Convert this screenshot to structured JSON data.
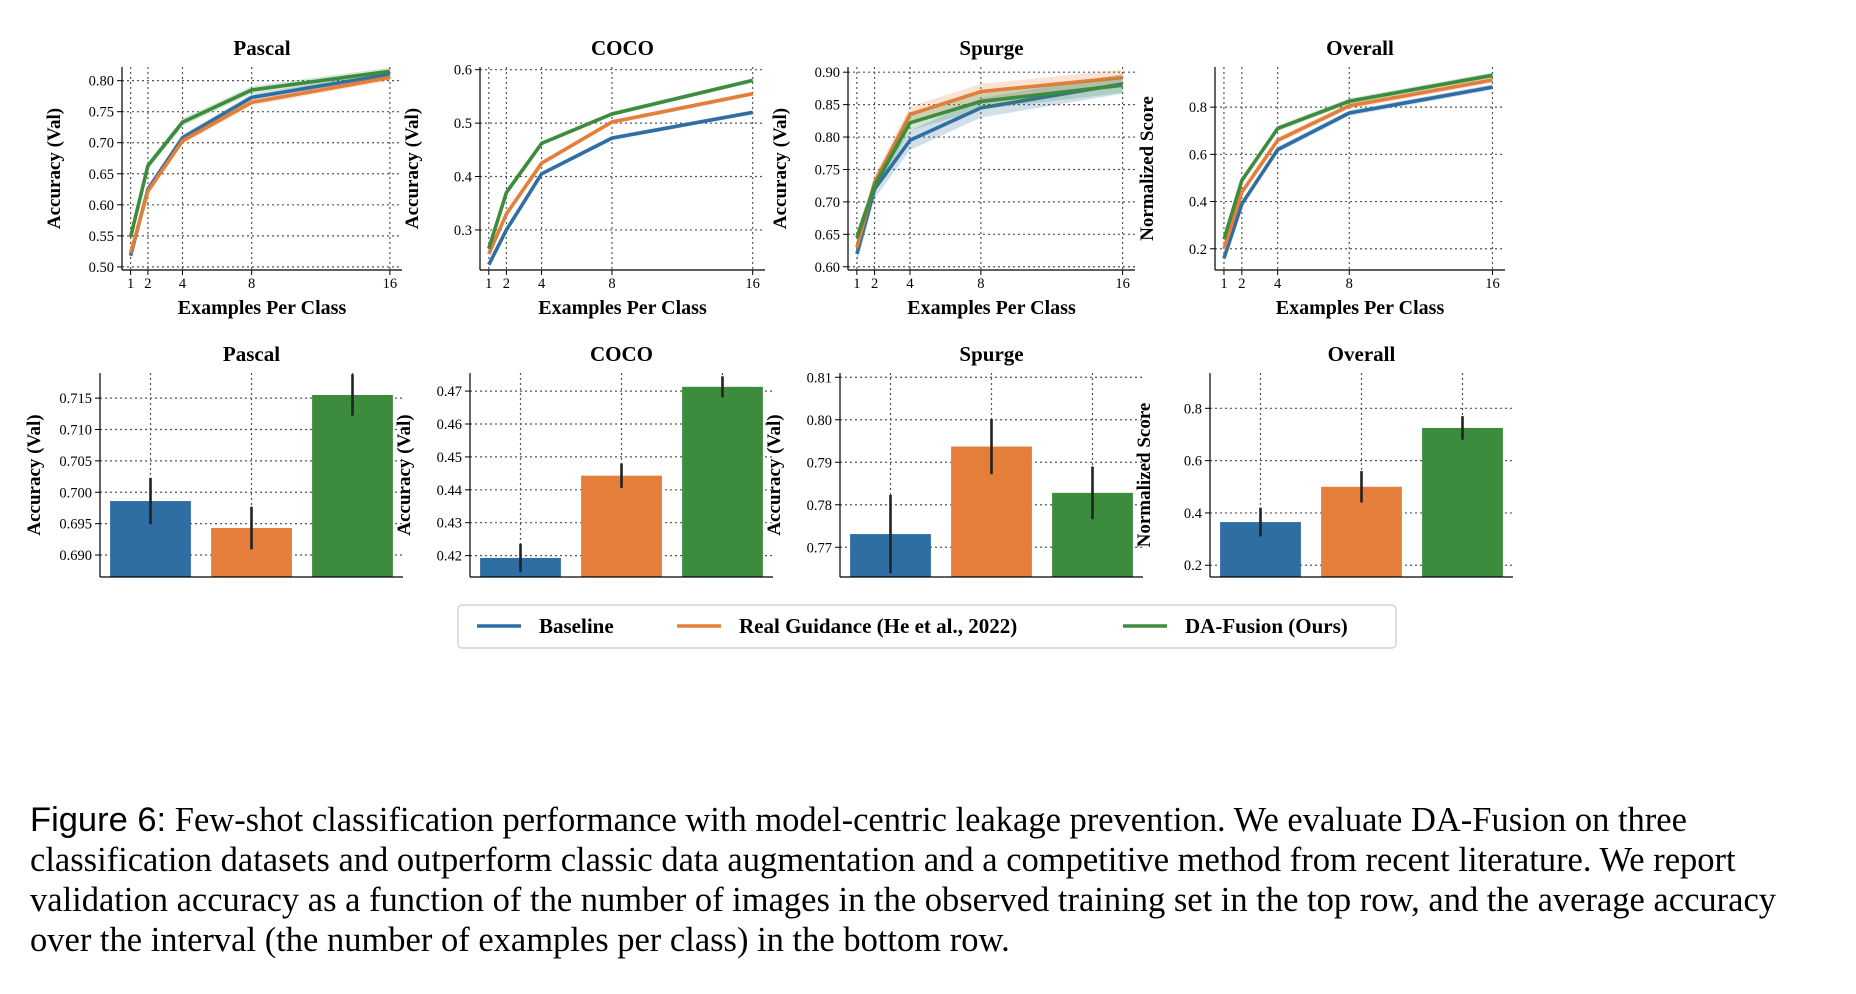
{
  "colors": {
    "baseline": "#2f6ea3",
    "real_guidance": "#e57e3a",
    "da_fusion": "#3d8b3d",
    "error_bar": "#222222"
  },
  "legend": [
    {
      "key": "baseline",
      "label": "Baseline"
    },
    {
      "key": "real_guidance",
      "label": "Real Guidance (He et al., 2022)"
    },
    {
      "key": "da_fusion",
      "label": "DA-Fusion (Ours)"
    }
  ],
  "caption": {
    "figure_label": "Figure 6:",
    "text": "Few-shot classification performance with model-centric leakage prevention. We evaluate DA-Fusion on three classification datasets and outperform classic data augmentation and a competitive method from recent literature. We report validation accuracy as a function of the number of images in the observed training set in the top row, and the average accuracy over the interval (the number of examples per class) in the bottom row."
  },
  "chart_data": [
    {
      "type": "line",
      "title": "Pascal",
      "xlabel": "Examples Per Class",
      "ylabel": "Accuracy (Val)",
      "x": [
        1,
        2,
        4,
        8,
        16
      ],
      "xlim": [
        0.5,
        16.7
      ],
      "ylim": [
        0.495,
        0.822
      ],
      "yticks": [
        "0.50",
        "0.55",
        "0.60",
        "0.65",
        "0.70",
        "0.75",
        "0.80"
      ],
      "series": [
        {
          "key": "baseline",
          "name": "Baseline",
          "values": [
            0.518,
            0.625,
            0.708,
            0.773,
            0.81
          ],
          "band": 0.005
        },
        {
          "key": "real_guidance",
          "name": "Real Guidance (He et al., 2022)",
          "values": [
            0.522,
            0.622,
            0.703,
            0.765,
            0.805
          ],
          "band": 0.005
        },
        {
          "key": "da_fusion",
          "name": "DA-Fusion (Ours)",
          "values": [
            0.548,
            0.663,
            0.733,
            0.785,
            0.815
          ],
          "band": 0.006
        }
      ]
    },
    {
      "type": "line",
      "title": "COCO",
      "xlabel": "Examples Per Class",
      "ylabel": "Accuracy (Val)",
      "x": [
        1,
        2,
        4,
        8,
        16
      ],
      "xlim": [
        0.5,
        16.7
      ],
      "ylim": [
        0.225,
        0.605
      ],
      "yticks": [
        "0.3",
        "0.4",
        "0.5",
        "0.6"
      ],
      "series": [
        {
          "key": "baseline",
          "name": "Baseline",
          "values": [
            0.235,
            0.3,
            0.405,
            0.472,
            0.52
          ],
          "band": 0.004
        },
        {
          "key": "real_guidance",
          "name": "Real Guidance (He et al., 2022)",
          "values": [
            0.255,
            0.33,
            0.425,
            0.502,
            0.555
          ],
          "band": 0.004
        },
        {
          "key": "da_fusion",
          "name": "DA-Fusion (Ours)",
          "values": [
            0.265,
            0.37,
            0.462,
            0.517,
            0.58
          ],
          "band": 0.004
        }
      ]
    },
    {
      "type": "line",
      "title": "Spurge",
      "xlabel": "Examples Per Class",
      "ylabel": "Accuracy (Val)",
      "x": [
        1,
        2,
        4,
        8,
        16
      ],
      "xlim": [
        0.5,
        16.7
      ],
      "ylim": [
        0.595,
        0.908
      ],
      "yticks": [
        "0.60",
        "0.65",
        "0.70",
        "0.75",
        "0.80",
        "0.85",
        "0.90"
      ],
      "series": [
        {
          "key": "baseline",
          "name": "Baseline",
          "values": [
            0.62,
            0.72,
            0.795,
            0.845,
            0.882
          ],
          "band": 0.015
        },
        {
          "key": "real_guidance",
          "name": "Real Guidance (He et al., 2022)",
          "values": [
            0.63,
            0.73,
            0.835,
            0.87,
            0.892
          ],
          "band": 0.012
        },
        {
          "key": "da_fusion",
          "name": "DA-Fusion (Ours)",
          "values": [
            0.645,
            0.725,
            0.822,
            0.855,
            0.88
          ],
          "band": 0.012
        }
      ]
    },
    {
      "type": "line",
      "title": "Overall",
      "xlabel": "Examples Per Class",
      "ylabel": "Normalized Score",
      "x": [
        1,
        2,
        4,
        8,
        16
      ],
      "xlim": [
        0.5,
        16.7
      ],
      "ylim": [
        0.11,
        0.97
      ],
      "yticks": [
        "0.2",
        "0.4",
        "0.6",
        "0.8"
      ],
      "series": [
        {
          "key": "baseline",
          "name": "Baseline",
          "values": [
            0.16,
            0.39,
            0.62,
            0.775,
            0.885
          ],
          "band": 0.012
        },
        {
          "key": "real_guidance",
          "name": "Real Guidance (He et al., 2022)",
          "values": [
            0.2,
            0.44,
            0.66,
            0.805,
            0.915
          ],
          "band": 0.012
        },
        {
          "key": "da_fusion",
          "name": "DA-Fusion (Ours)",
          "values": [
            0.24,
            0.49,
            0.71,
            0.825,
            0.935
          ],
          "band": 0.012
        }
      ]
    },
    {
      "type": "bar",
      "title": "Pascal",
      "xlabel": "",
      "ylabel": "Accuracy (Val)",
      "ylim": [
        0.6865,
        0.719
      ],
      "yticks": [
        "0.690",
        "0.695",
        "0.700",
        "0.705",
        "0.710",
        "0.715"
      ],
      "series": [
        {
          "key": "baseline",
          "name": "Baseline",
          "value": 0.6986,
          "err": 0.0037
        },
        {
          "key": "real_guidance",
          "name": "Real Guidance (He et al., 2022)",
          "value": 0.6943,
          "err": 0.0034
        },
        {
          "key": "da_fusion",
          "name": "DA-Fusion (Ours)",
          "value": 0.7155,
          "err": 0.0033
        }
      ]
    },
    {
      "type": "bar",
      "title": "COCO",
      "xlabel": "",
      "ylabel": "Accuracy (Val)",
      "ylim": [
        0.4135,
        0.4755
      ],
      "yticks": [
        "0.42",
        "0.43",
        "0.44",
        "0.45",
        "0.46",
        "0.47"
      ],
      "series": [
        {
          "key": "baseline",
          "name": "Baseline",
          "value": 0.4193,
          "err": 0.0043
        },
        {
          "key": "real_guidance",
          "name": "Real Guidance (He et al., 2022)",
          "value": 0.4443,
          "err": 0.0037
        },
        {
          "key": "da_fusion",
          "name": "DA-Fusion (Ours)",
          "value": 0.4713,
          "err": 0.0032
        }
      ]
    },
    {
      "type": "bar",
      "title": "Spurge",
      "xlabel": "",
      "ylabel": "Accuracy (Val)",
      "ylim": [
        0.763,
        0.811
      ],
      "yticks": [
        "0.77",
        "0.78",
        "0.79",
        "0.80",
        "0.81"
      ],
      "series": [
        {
          "key": "baseline",
          "name": "Baseline",
          "value": 0.7731,
          "err": 0.0092
        },
        {
          "key": "real_guidance",
          "name": "Real Guidance (He et al., 2022)",
          "value": 0.7937,
          "err": 0.0065
        },
        {
          "key": "da_fusion",
          "name": "DA-Fusion (Ours)",
          "value": 0.7828,
          "err": 0.0062
        }
      ]
    },
    {
      "type": "bar",
      "title": "Overall",
      "xlabel": "",
      "ylabel": "Normalized Score",
      "ylim": [
        0.155,
        0.935
      ],
      "yticks": [
        "0.2",
        "0.4",
        "0.6",
        "0.8"
      ],
      "series": [
        {
          "key": "baseline",
          "name": "Baseline",
          "value": 0.365,
          "err": 0.055
        },
        {
          "key": "real_guidance",
          "name": "Real Guidance (He et al., 2022)",
          "value": 0.5,
          "err": 0.06
        },
        {
          "key": "da_fusion",
          "name": "DA-Fusion (Ours)",
          "value": 0.725,
          "err": 0.045
        }
      ]
    }
  ]
}
